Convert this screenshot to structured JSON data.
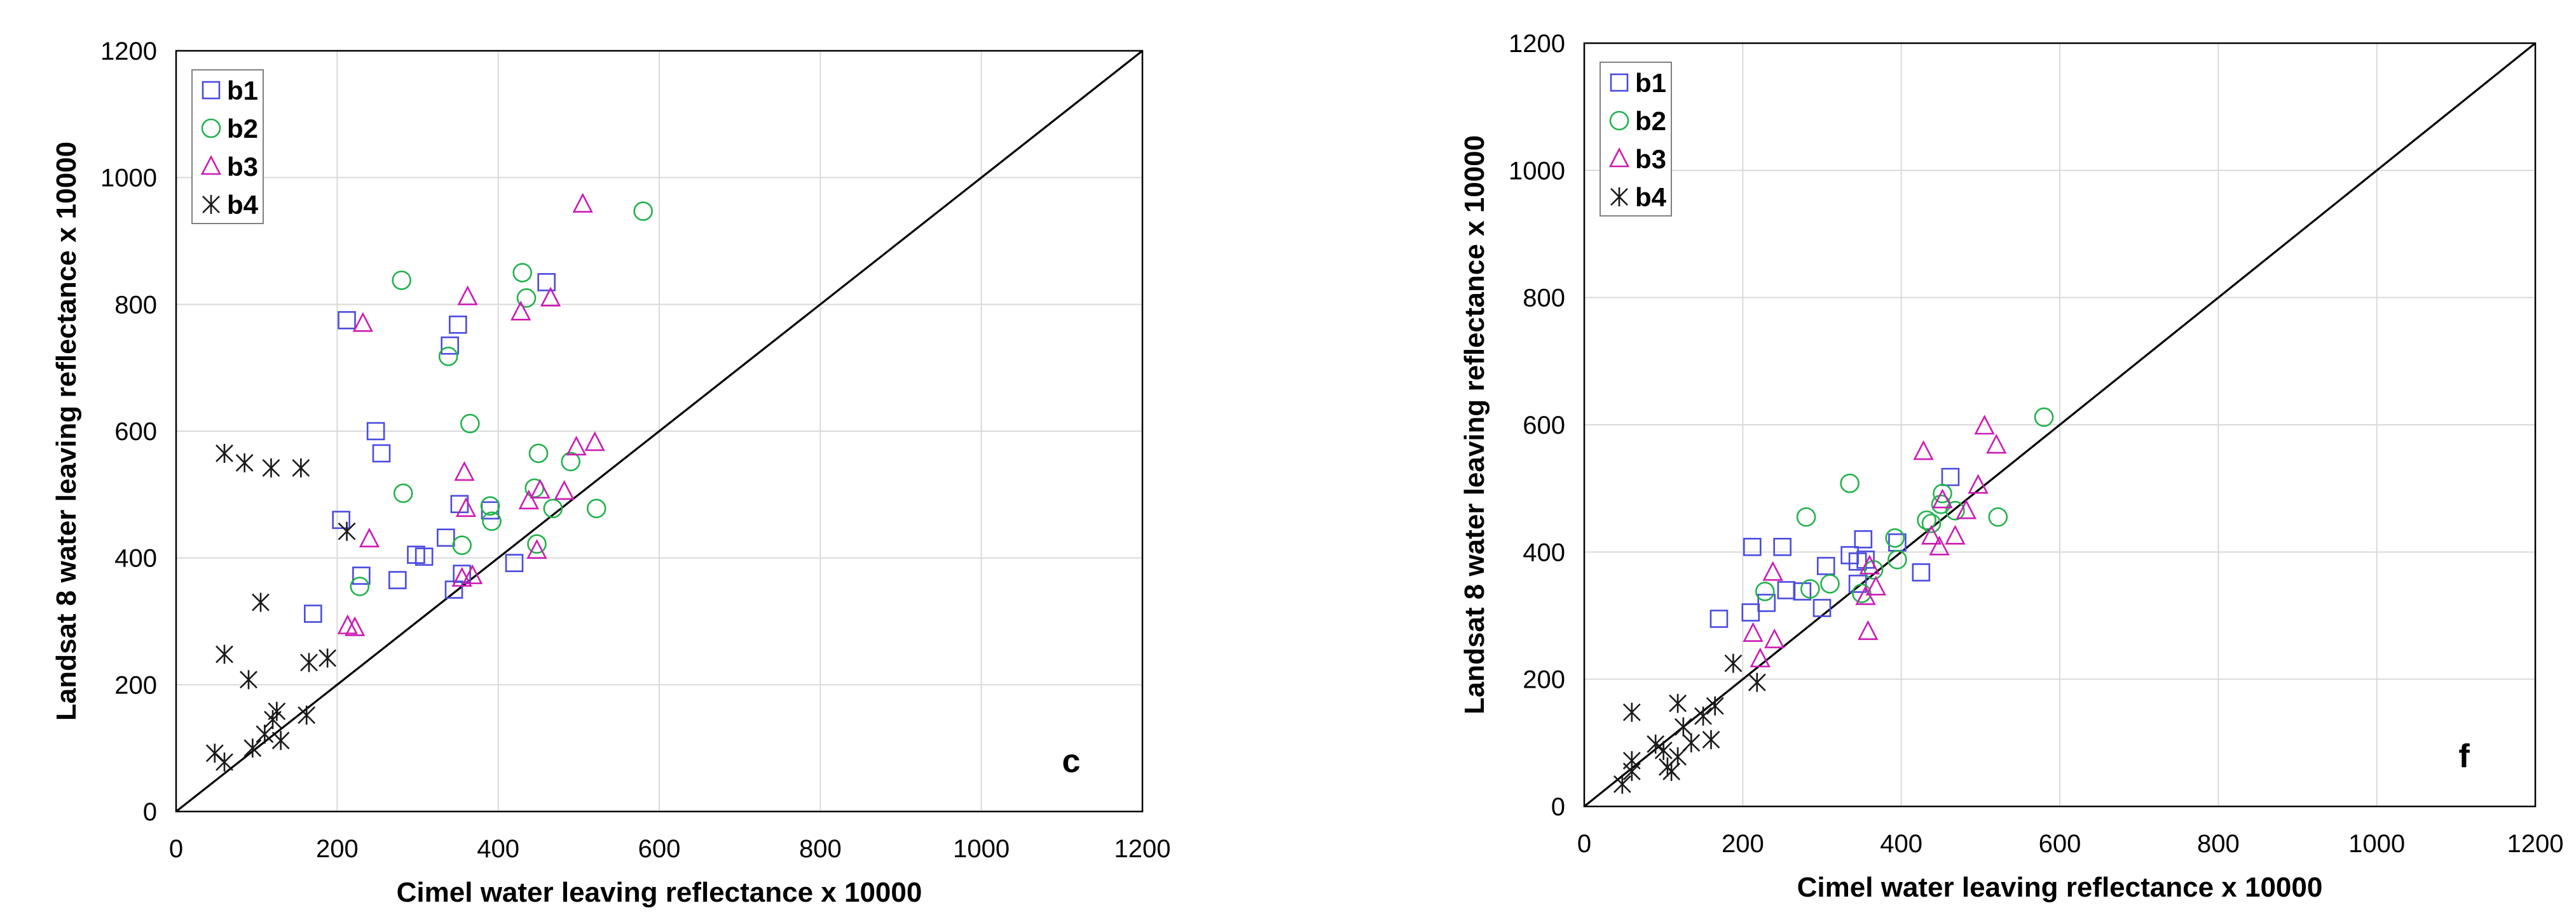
{
  "colors": {
    "b1": "#4a4ae0",
    "b2": "#22b24c",
    "b3": "#cc1ab4",
    "b4": "#1a1a1a",
    "grid": "#d9d9d9",
    "axis": "#000000"
  },
  "chart_data": [
    {
      "type": "scatter",
      "panel_label": "c",
      "xlabel": "Cimel water leaving reflectance x 10000",
      "ylabel": "Landsat 8 water leaving reflectance x 10000",
      "xlim": [
        0,
        1200
      ],
      "ylim": [
        0,
        1200
      ],
      "xticks": [
        "0",
        "200",
        "400",
        "600",
        "800",
        "1000",
        "1200"
      ],
      "yticks": [
        "0",
        "200",
        "400",
        "600",
        "800",
        "1000",
        "1200"
      ],
      "grid": true,
      "legend_position": "top-left",
      "reference_line": "1:1",
      "series": [
        {
          "name": "b1",
          "marker": "square",
          "points": [
            [
              212,
              775
            ],
            [
              340,
              735
            ],
            [
              350,
              768
            ],
            [
              460,
              835
            ],
            [
              248,
              600
            ],
            [
              255,
              565
            ],
            [
              205,
              460
            ],
            [
              352,
              485
            ],
            [
              390,
              475
            ],
            [
              335,
              432
            ],
            [
              230,
              372
            ],
            [
              275,
              365
            ],
            [
              298,
              405
            ],
            [
              308,
              402
            ],
            [
              355,
              375
            ],
            [
              345,
              350
            ],
            [
              170,
              312
            ],
            [
              420,
              392
            ]
          ]
        },
        {
          "name": "b2",
          "marker": "circle",
          "points": [
            [
              280,
              838
            ],
            [
              430,
              850
            ],
            [
              435,
              810
            ],
            [
              338,
              718
            ],
            [
              580,
              947
            ],
            [
              365,
              612
            ],
            [
              450,
              565
            ],
            [
              282,
              502
            ],
            [
              490,
              552
            ],
            [
              445,
              510
            ],
            [
              390,
              482
            ],
            [
              392,
              458
            ],
            [
              355,
              420
            ],
            [
              448,
              422
            ],
            [
              522,
              478
            ],
            [
              468,
              478
            ],
            [
              228,
              355
            ]
          ]
        },
        {
          "name": "b3",
          "marker": "triangle",
          "points": [
            [
              232,
              770
            ],
            [
              362,
              812
            ],
            [
              428,
              788
            ],
            [
              465,
              810
            ],
            [
              505,
              958
            ],
            [
              358,
              535
            ],
            [
              497,
              575
            ],
            [
              520,
              582
            ],
            [
              452,
              507
            ],
            [
              482,
              505
            ],
            [
              438,
              490
            ],
            [
              360,
              478
            ],
            [
              240,
              430
            ],
            [
              448,
              412
            ],
            [
              355,
              368
            ],
            [
              368,
              372
            ],
            [
              213,
              293
            ],
            [
              222,
              290
            ]
          ]
        },
        {
          "name": "b4",
          "marker": "star",
          "points": [
            [
              60,
              565
            ],
            [
              85,
              550
            ],
            [
              118,
              542
            ],
            [
              155,
              542
            ],
            [
              212,
              442
            ],
            [
              105,
              330
            ],
            [
              60,
              248
            ],
            [
              90,
              208
            ],
            [
              165,
              235
            ],
            [
              188,
              242
            ],
            [
              125,
              158
            ],
            [
              120,
              145
            ],
            [
              162,
              152
            ],
            [
              110,
              122
            ],
            [
              130,
              112
            ],
            [
              95,
              100
            ],
            [
              48,
              92
            ],
            [
              60,
              78
            ]
          ]
        }
      ]
    },
    {
      "type": "scatter",
      "panel_label": "f",
      "xlabel": "Cimel water leaving reflectance x 10000",
      "ylabel": "Landsat 8 water leaving reflectance x 10000",
      "xlim": [
        0,
        1200
      ],
      "ylim": [
        0,
        1200
      ],
      "xticks": [
        "0",
        "200",
        "400",
        "600",
        "800",
        "1000",
        "1200"
      ],
      "yticks": [
        "0",
        "200",
        "400",
        "600",
        "800",
        "1000",
        "1200"
      ],
      "grid": true,
      "legend_position": "top-left",
      "reference_line": "1:1",
      "series": [
        {
          "name": "b1",
          "marker": "square",
          "points": [
            [
              462,
              518
            ],
            [
              212,
              408
            ],
            [
              250,
              408
            ],
            [
              352,
              420
            ],
            [
              395,
              415
            ],
            [
              335,
              395
            ],
            [
              355,
              388
            ],
            [
              345,
              385
            ],
            [
              425,
              368
            ],
            [
              305,
              378
            ],
            [
              255,
              340
            ],
            [
              275,
              338
            ],
            [
              230,
              320
            ],
            [
              210,
              305
            ],
            [
              300,
              312
            ],
            [
              170,
              295
            ],
            [
              345,
              350
            ]
          ]
        },
        {
          "name": "b2",
          "marker": "circle",
          "points": [
            [
              580,
              612
            ],
            [
              335,
              508
            ],
            [
              280,
              455
            ],
            [
              522,
              455
            ],
            [
              452,
              492
            ],
            [
              450,
              475
            ],
            [
              432,
              450
            ],
            [
              438,
              445
            ],
            [
              392,
              422
            ],
            [
              468,
              465
            ],
            [
              395,
              388
            ],
            [
              365,
              372
            ],
            [
              310,
              350
            ],
            [
              285,
              342
            ],
            [
              228,
              338
            ],
            [
              350,
              335
            ]
          ]
        },
        {
          "name": "b3",
          "marker": "triangle",
          "points": [
            [
              505,
              598
            ],
            [
              428,
              558
            ],
            [
              520,
              568
            ],
            [
              497,
              505
            ],
            [
              482,
              465
            ],
            [
              452,
              482
            ],
            [
              468,
              425
            ],
            [
              438,
              425
            ],
            [
              448,
              408
            ],
            [
              360,
              378
            ],
            [
              368,
              345
            ],
            [
              238,
              368
            ],
            [
              355,
              330
            ],
            [
              213,
              272
            ],
            [
              240,
              262
            ],
            [
              358,
              275
            ],
            [
              222,
              232
            ]
          ]
        },
        {
          "name": "b4",
          "marker": "star",
          "points": [
            [
              188,
              225
            ],
            [
              218,
              195
            ],
            [
              118,
              162
            ],
            [
              60,
              148
            ],
            [
              165,
              158
            ],
            [
              150,
              142
            ],
            [
              125,
              125
            ],
            [
              160,
              105
            ],
            [
              135,
              100
            ],
            [
              90,
              98
            ],
            [
              100,
              88
            ],
            [
              118,
              78
            ],
            [
              105,
              62
            ],
            [
              60,
              72
            ],
            [
              110,
              55
            ],
            [
              60,
              55
            ],
            [
              48,
              35
            ]
          ]
        }
      ]
    }
  ]
}
